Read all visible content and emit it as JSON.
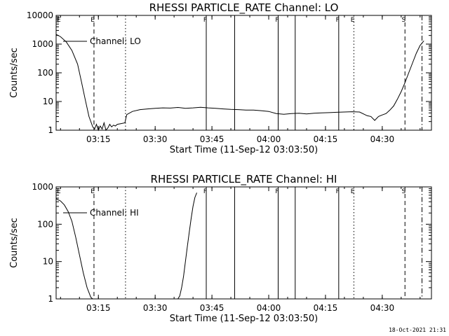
{
  "footer_timestamp": "18-Oct-2021 21:31",
  "chart_data": [
    {
      "type": "line",
      "title": "RHESSI PARTICLE_RATE Channel: LO",
      "xlabel": "Start Time (11-Sep-12 03:03:50)",
      "ylabel": "Counts/sec",
      "y_scale": "log",
      "ylim": [
        1,
        10000
      ],
      "xlim": [
        "03:03:50",
        "04:43:00"
      ],
      "x_ticks": [
        "03:15",
        "03:30",
        "03:45",
        "04:00",
        "04:15",
        "04:30"
      ],
      "y_ticks": [
        "1",
        "10",
        "100",
        "1000",
        "10000"
      ],
      "legend": {
        "entry": "Channel: LO",
        "placement": "top-left"
      },
      "series": [
        {
          "name": "Channel: LO",
          "x": [
            "03:03:50",
            "03:05:00",
            "03:06:30",
            "03:08:00",
            "03:09:30",
            "03:10:30",
            "03:11:30",
            "03:12:30",
            "03:13:30",
            "03:14:00",
            "03:14:30",
            "03:15:00",
            "03:15:30",
            "03:16:00",
            "03:16:30",
            "03:17:00",
            "03:17:30",
            "03:18:00",
            "03:18:30",
            "03:19:00",
            "03:19:30",
            "03:20:00",
            "03:21:00",
            "03:22:00",
            "03:22:30",
            "03:24:00",
            "03:26:00",
            "03:28:00",
            "03:30:00",
            "03:32:00",
            "03:34:00",
            "03:36:00",
            "03:38:00",
            "03:40:00",
            "03:42:00",
            "03:44:00",
            "03:46:00",
            "03:48:00",
            "03:50:00",
            "03:52:00",
            "03:54:00",
            "03:56:00",
            "03:58:00",
            "04:00:00",
            "04:02:00",
            "04:04:00",
            "04:06:00",
            "04:08:00",
            "04:10:00",
            "04:12:00",
            "04:14:00",
            "04:16:00",
            "04:18:00",
            "04:20:00",
            "04:22:00",
            "04:24:00",
            "04:26:00",
            "04:27:00",
            "04:28:00",
            "04:29:00",
            "04:30:00",
            "04:31:00",
            "04:32:00",
            "04:33:00",
            "04:34:00",
            "04:35:00",
            "04:36:00",
            "04:37:00",
            "04:38:00",
            "04:39:00",
            "04:40:00",
            "04:41:00"
          ],
          "values": [
            2200,
            1800,
            1200,
            600,
            200,
            50,
            12,
            3,
            1.3,
            1.1,
            1.6,
            1,
            1.4,
            1.1,
            1.8,
            1,
            1.2,
            1.6,
            1.3,
            1.5,
            1.4,
            1.6,
            1.7,
            1.8,
            3.5,
            4.5,
            5.2,
            5.5,
            5.8,
            6,
            5.9,
            6.2,
            5.8,
            6,
            6.3,
            6,
            5.8,
            5.5,
            5.3,
            5.2,
            5,
            5,
            4.8,
            4.5,
            3.8,
            3.6,
            3.8,
            3.9,
            3.7,
            3.9,
            4,
            4.1,
            4.2,
            4.3,
            4.4,
            4.3,
            3.2,
            3,
            2.2,
            3,
            3.4,
            3.8,
            5,
            7,
            12,
            22,
            45,
            100,
            220,
            480,
            900,
            1300
          ]
        }
      ],
      "vlines": [
        {
          "x": "03:13:50",
          "style": "dashed",
          "label": "E"
        },
        {
          "x": "03:22:10",
          "style": "dotted",
          "label": ""
        },
        {
          "x": "03:43:30",
          "style": "solid",
          "label": "F"
        },
        {
          "x": "03:51:00",
          "style": "solid",
          "label": ""
        },
        {
          "x": "04:02:30",
          "style": "solid",
          "label": "F"
        },
        {
          "x": "04:07:00",
          "style": "solid",
          "label": ""
        },
        {
          "x": "04:18:30",
          "style": "solid",
          "label": "F"
        },
        {
          "x": "04:22:30",
          "style": "dotted",
          "label": "E"
        },
        {
          "x": "04:36:00",
          "style": "dashed",
          "label": "S"
        },
        {
          "x": "04:40:30",
          "style": "dashdot",
          "label": ""
        }
      ],
      "top_left_marker": "E"
    },
    {
      "type": "line",
      "title": "RHESSI PARTICLE_RATE Channel: HI",
      "xlabel": "Start Time (11-Sep-12 03:03:50)",
      "ylabel": "Counts/sec",
      "y_scale": "log",
      "ylim": [
        1,
        1000
      ],
      "xlim": [
        "03:03:50",
        "04:43:00"
      ],
      "x_ticks": [
        "03:15",
        "03:30",
        "03:45",
        "04:00",
        "04:15",
        "04:30"
      ],
      "y_ticks": [
        "1",
        "10",
        "100",
        "1000"
      ],
      "legend": {
        "entry": "Channel: HI",
        "placement": "top-left"
      },
      "series": [
        {
          "name": "Channel: HI",
          "x": [
            "03:03:50",
            "03:05:00",
            "03:06:00",
            "03:07:00",
            "03:08:00",
            "03:09:00",
            "03:10:00",
            "03:11:00",
            "03:12:00",
            "03:13:00",
            "03:13:30",
            "03:36:00",
            "03:36:30",
            "03:37:00",
            "03:37:30",
            "03:38:00",
            "03:38:30",
            "03:39:00",
            "03:39:30",
            "03:40:00",
            "03:40:30",
            "03:41:00"
          ],
          "values": [
            480,
            420,
            330,
            220,
            120,
            45,
            15,
            5,
            2,
            1.1,
            1,
            1,
            1.2,
            2,
            4,
            10,
            25,
            60,
            140,
            300,
            520,
            700
          ]
        }
      ],
      "vlines": [
        {
          "x": "03:13:50",
          "style": "dashed",
          "label": "E"
        },
        {
          "x": "03:22:10",
          "style": "dotted",
          "label": ""
        },
        {
          "x": "03:43:30",
          "style": "solid",
          "label": "F"
        },
        {
          "x": "03:51:00",
          "style": "solid",
          "label": ""
        },
        {
          "x": "04:02:30",
          "style": "solid",
          "label": "F"
        },
        {
          "x": "04:07:00",
          "style": "solid",
          "label": ""
        },
        {
          "x": "04:18:30",
          "style": "solid",
          "label": "F"
        },
        {
          "x": "04:22:30",
          "style": "dotted",
          "label": "E"
        },
        {
          "x": "04:36:00",
          "style": "dashed",
          "label": "S"
        },
        {
          "x": "04:40:30",
          "style": "dashdot",
          "label": ""
        }
      ],
      "top_left_marker": "E"
    }
  ]
}
